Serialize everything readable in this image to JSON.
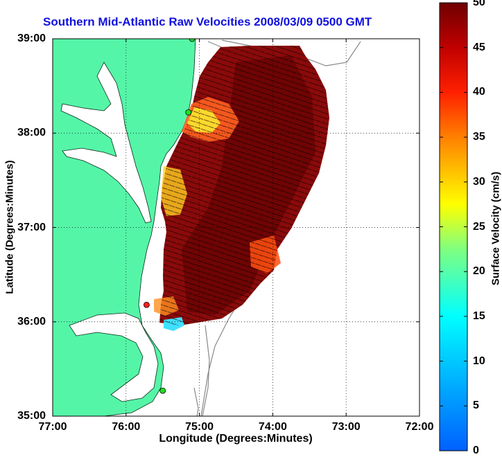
{
  "title": "Southern Mid-Atlantic Raw Velocities 2008/03/09 0500 GMT",
  "map": {
    "xlabel": "Longitude (Degrees:Minutes)",
    "ylabel": "Latitude (Degrees:Minutes)",
    "x_ticks": [
      "77:00",
      "76:00",
      "75:00",
      "74:00",
      "73:00",
      "72:00"
    ],
    "y_ticks": [
      "39:00",
      "38:00",
      "37:00",
      "36:00",
      "35:00"
    ],
    "lon_range": [
      -77,
      -72
    ],
    "lat_range": [
      35,
      39
    ],
    "grid": "dotted"
  },
  "colorbar": {
    "label": "Surface Velocity (cm/s)",
    "ticks": [
      "50",
      "45",
      "40",
      "35",
      "30",
      "25",
      "20",
      "15",
      "10",
      "5",
      "0"
    ],
    "range": [
      0,
      50
    ],
    "colors": {
      "high": "#7a0000",
      "mid_high": "#ff4000",
      "mid": "#ffff00",
      "mid_low": "#00ffff",
      "low": "#0060ff"
    }
  },
  "legend_colors": {
    "land": "#55f5a8",
    "station_red": "#ff2020",
    "station_green": "#20e020",
    "bathymetry": "#888888"
  },
  "stations": [
    {
      "lon": -75.1,
      "lat": 39.0,
      "color": "green"
    },
    {
      "lon": -75.15,
      "lat": 38.22,
      "color": "green"
    },
    {
      "lon": -75.72,
      "lat": 36.18,
      "color": "red"
    },
    {
      "lon": -75.5,
      "lat": 35.27,
      "color": "green"
    }
  ]
}
